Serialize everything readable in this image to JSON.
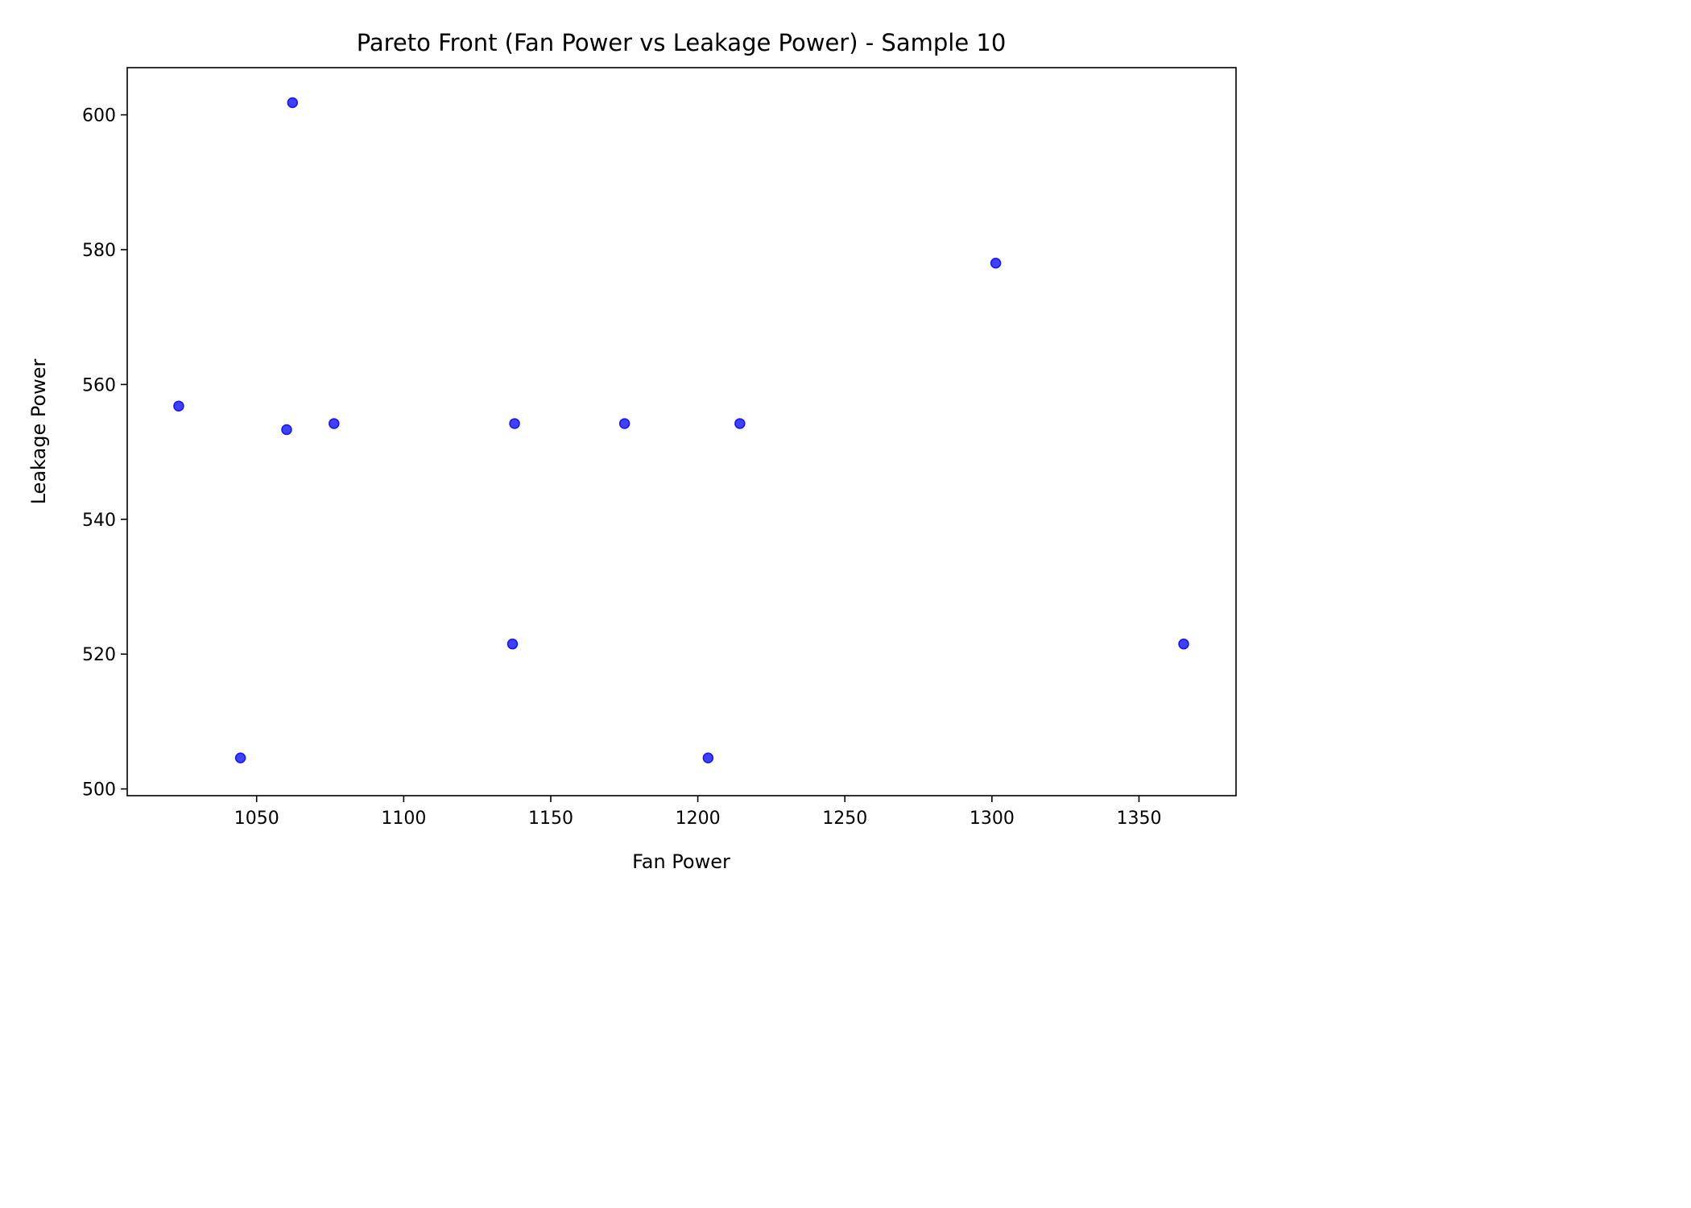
{
  "chart_data": {
    "type": "scatter",
    "title": "Pareto Front (Fan Power vs Leakage Power) - Sample 10",
    "xlabel": "Fan Power",
    "ylabel": "Leakage Power",
    "xlim": [
      1006,
      1383
    ],
    "ylim": [
      499,
      607
    ],
    "xticks": [
      1050,
      1100,
      1150,
      1200,
      1250,
      1300,
      1350
    ],
    "yticks": [
      500,
      520,
      540,
      560,
      580,
      600
    ],
    "grid": false,
    "marker_color": "#0000ff",
    "marker_alpha": 0.75,
    "points": [
      {
        "x": 1023.5,
        "y": 556.8
      },
      {
        "x": 1044.5,
        "y": 504.6
      },
      {
        "x": 1060.2,
        "y": 553.3
      },
      {
        "x": 1062.2,
        "y": 601.8
      },
      {
        "x": 1076.3,
        "y": 554.2
      },
      {
        "x": 1137.0,
        "y": 521.5
      },
      {
        "x": 1137.7,
        "y": 554.2
      },
      {
        "x": 1175.1,
        "y": 554.2
      },
      {
        "x": 1203.5,
        "y": 504.6
      },
      {
        "x": 1214.3,
        "y": 554.2
      },
      {
        "x": 1301.3,
        "y": 578.0
      },
      {
        "x": 1365.2,
        "y": 521.5
      }
    ]
  }
}
